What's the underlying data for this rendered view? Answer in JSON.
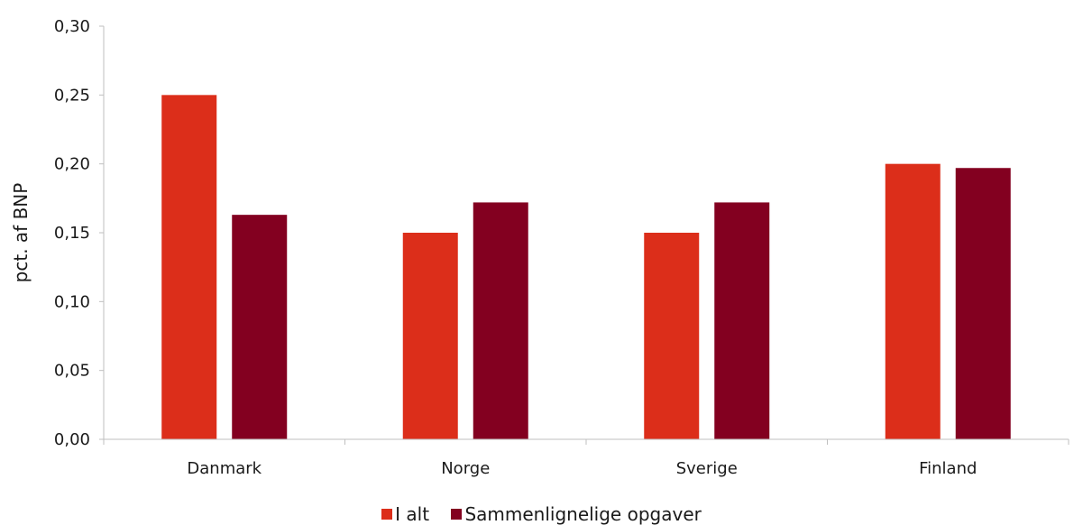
{
  "chart_data": {
    "type": "bar",
    "title": "",
    "xlabel": "",
    "ylabel": "pct. af BNP",
    "categories": [
      "Danmark",
      "Norge",
      "Sverige",
      "Finland"
    ],
    "series": [
      {
        "name": "I alt",
        "color": "#dc2e1a",
        "values": [
          0.25,
          0.15,
          0.15,
          0.2
        ]
      },
      {
        "name": "Sammenlignelige opgaver",
        "color": "#830020",
        "values": [
          0.163,
          0.172,
          0.172,
          0.197
        ]
      }
    ],
    "ylim": [
      0,
      0.3
    ],
    "yticks": [
      "0,00",
      "0,05",
      "0,10",
      "0,15",
      "0,20",
      "0,25",
      "0,30"
    ],
    "grid": false,
    "legend_position": "bottom"
  }
}
